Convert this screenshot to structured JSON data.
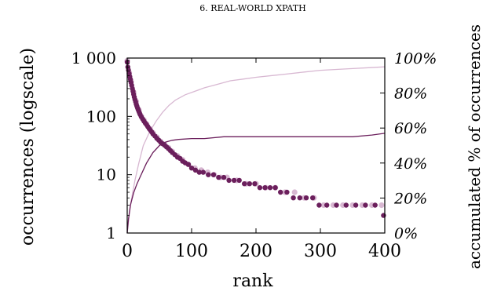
{
  "chart_data": {
    "title": "6. REAL-WORLD XPATH",
    "type": "scatter",
    "xlabel": "rank",
    "ylabel_left": "occurrences (logscale)",
    "ylabel_right": "accumulated % of occurrences",
    "x_range": [
      0,
      400
    ],
    "x_ticks": [
      "0",
      "100",
      "200",
      "300",
      "400"
    ],
    "y_left_scale": "log",
    "y_left_range": [
      1,
      1000
    ],
    "y_left_ticks": [
      "1",
      "10",
      "100",
      "1 000"
    ],
    "y_right_range": [
      0,
      100
    ],
    "y_right_ticks": [
      "0%",
      "20%",
      "40%",
      "60%",
      "80%",
      "100%"
    ],
    "grid": false,
    "colors": {
      "dark": "#6b1f5c",
      "light": "#d8b8d2",
      "axis": "#000000"
    },
    "series": [
      {
        "style": "dots, dark (sample set A, left axis)",
        "points": [
          [
            0,
            850
          ],
          [
            1,
            700
          ],
          [
            2,
            620
          ],
          [
            3,
            540
          ],
          [
            4,
            480
          ],
          [
            5,
            430
          ],
          [
            6,
            380
          ],
          [
            7,
            340
          ],
          [
            8,
            300
          ],
          [
            9,
            270
          ],
          [
            10,
            240
          ],
          [
            11,
            215
          ],
          [
            12,
            195
          ],
          [
            13,
            178
          ],
          [
            14,
            162
          ],
          [
            15,
            150
          ],
          [
            16,
            140
          ],
          [
            17,
            131
          ],
          [
            18,
            122
          ],
          [
            19,
            115
          ],
          [
            20,
            108
          ],
          [
            22,
            98
          ],
          [
            24,
            90
          ],
          [
            26,
            83
          ],
          [
            28,
            77
          ],
          [
            30,
            72
          ],
          [
            32,
            67
          ],
          [
            34,
            62
          ],
          [
            36,
            58
          ],
          [
            38,
            54
          ],
          [
            40,
            50
          ],
          [
            43,
            46
          ],
          [
            46,
            42
          ],
          [
            49,
            39
          ],
          [
            52,
            36
          ],
          [
            55,
            34
          ],
          [
            58,
            32
          ],
          [
            61,
            30
          ],
          [
            64,
            28
          ],
          [
            67,
            26
          ],
          [
            70,
            24
          ],
          [
            74,
            22
          ],
          [
            78,
            20
          ],
          [
            82,
            19
          ],
          [
            86,
            17
          ],
          [
            90,
            16
          ],
          [
            95,
            15
          ],
          [
            100,
            13
          ],
          [
            106,
            12
          ],
          [
            112,
            11
          ],
          [
            118,
            11
          ],
          [
            126,
            10
          ],
          [
            134,
            10
          ],
          [
            142,
            9
          ],
          [
            150,
            9
          ],
          [
            158,
            8
          ],
          [
            166,
            8
          ],
          [
            174,
            8
          ],
          [
            182,
            7
          ],
          [
            190,
            7
          ],
          [
            198,
            7
          ],
          [
            206,
            6
          ],
          [
            214,
            6
          ],
          [
            222,
            6
          ],
          [
            230,
            6
          ],
          [
            238,
            5
          ],
          [
            248,
            5
          ],
          [
            258,
            4
          ],
          [
            268,
            4
          ],
          [
            278,
            4
          ],
          [
            288,
            4
          ],
          [
            298,
            3
          ],
          [
            310,
            3
          ],
          [
            325,
            3
          ],
          [
            340,
            3
          ],
          [
            355,
            3
          ],
          [
            370,
            3
          ],
          [
            385,
            3
          ],
          [
            398,
            2
          ]
        ]
      },
      {
        "style": "dots, light (sample set B, left axis)",
        "points": [
          [
            0,
            900
          ],
          [
            3,
            560
          ],
          [
            6,
            400
          ],
          [
            10,
            260
          ],
          [
            14,
            180
          ],
          [
            18,
            130
          ],
          [
            22,
            100
          ],
          [
            26,
            86
          ],
          [
            30,
            74
          ],
          [
            35,
            61
          ],
          [
            40,
            52
          ],
          [
            46,
            44
          ],
          [
            52,
            37
          ],
          [
            58,
            33
          ],
          [
            64,
            29
          ],
          [
            70,
            25
          ],
          [
            78,
            21
          ],
          [
            86,
            18
          ],
          [
            95,
            15
          ],
          [
            105,
            13
          ],
          [
            115,
            12
          ],
          [
            125,
            11
          ],
          [
            135,
            10
          ],
          [
            145,
            9
          ],
          [
            155,
            9
          ],
          [
            170,
            8
          ],
          [
            185,
            7
          ],
          [
            200,
            7
          ],
          [
            215,
            6
          ],
          [
            230,
            6
          ],
          [
            245,
            5
          ],
          [
            260,
            5
          ],
          [
            275,
            4
          ],
          [
            290,
            4
          ],
          [
            305,
            3
          ],
          [
            320,
            3
          ],
          [
            335,
            3
          ],
          [
            350,
            3
          ],
          [
            365,
            3
          ],
          [
            380,
            3
          ],
          [
            395,
            3
          ]
        ]
      },
      {
        "style": "cumulative line, dark (right axis)",
        "points": [
          [
            0,
            0
          ],
          [
            2,
            8
          ],
          [
            5,
            16
          ],
          [
            10,
            23
          ],
          [
            15,
            28
          ],
          [
            20,
            32
          ],
          [
            25,
            36
          ],
          [
            30,
            40
          ],
          [
            35,
            43
          ],
          [
            40,
            46
          ],
          [
            45,
            48
          ],
          [
            50,
            50
          ],
          [
            60,
            52
          ],
          [
            70,
            53
          ],
          [
            80,
            53.5
          ],
          [
            100,
            54
          ],
          [
            120,
            54
          ],
          [
            150,
            55
          ],
          [
            200,
            55
          ],
          [
            250,
            55
          ],
          [
            300,
            55
          ],
          [
            350,
            55
          ],
          [
            380,
            56
          ],
          [
            400,
            57
          ]
        ]
      },
      {
        "style": "cumulative line, light (right axis)",
        "points": [
          [
            0,
            0
          ],
          [
            3,
            10
          ],
          [
            7,
            20
          ],
          [
            12,
            30
          ],
          [
            18,
            40
          ],
          [
            25,
            50
          ],
          [
            35,
            58
          ],
          [
            45,
            64
          ],
          [
            55,
            69
          ],
          [
            65,
            73
          ],
          [
            75,
            76
          ],
          [
            90,
            79
          ],
          [
            105,
            81
          ],
          [
            120,
            83
          ],
          [
            140,
            85
          ],
          [
            160,
            87
          ],
          [
            180,
            88
          ],
          [
            200,
            89
          ],
          [
            225,
            90
          ],
          [
            250,
            91
          ],
          [
            275,
            92
          ],
          [
            300,
            93
          ],
          [
            325,
            93.5
          ],
          [
            350,
            94
          ],
          [
            375,
            94.5
          ],
          [
            400,
            95
          ]
        ]
      }
    ]
  }
}
